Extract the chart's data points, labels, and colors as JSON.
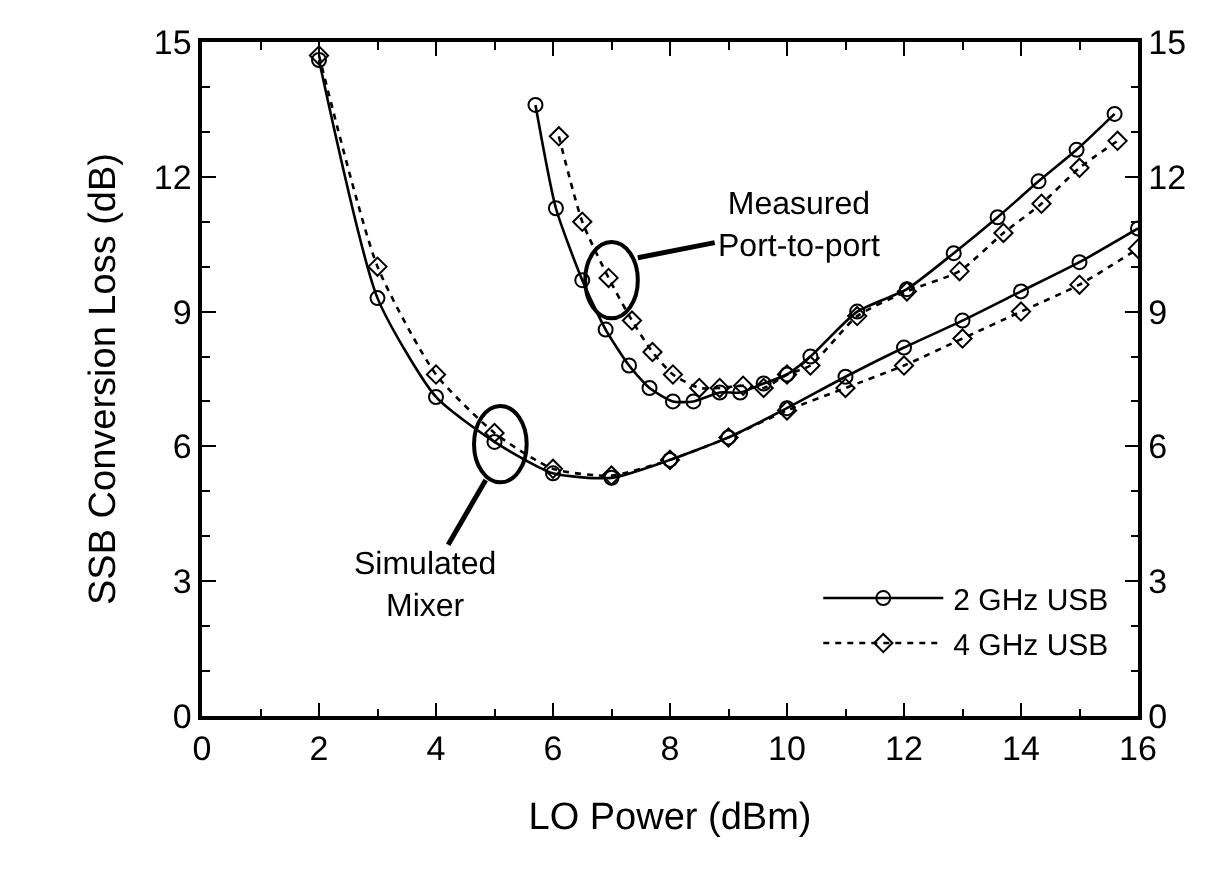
{
  "chart_data": {
    "type": "line",
    "xlabel": "LO Power (dBm)",
    "ylabel": "SSB Conversion Loss (dB)",
    "xlim": [
      0,
      16
    ],
    "xticks": [
      0,
      2,
      4,
      6,
      8,
      10,
      12,
      14,
      16
    ],
    "ylim": [
      0,
      15
    ],
    "yticks": [
      0,
      3,
      6,
      9,
      12,
      15
    ],
    "y2lim": [
      0,
      15
    ],
    "y2ticks": [
      0,
      3,
      6,
      9,
      12,
      15
    ],
    "legend": "bottom right",
    "annotations": [
      "Measured\nPort-to-port",
      "Simulated\nMixer"
    ],
    "series": [
      {
        "name": "2 GHz USB",
        "color": "#000000",
        "marker": "circle",
        "line_style": "solid",
        "x": [
          2,
          3,
          4,
          5,
          6,
          7,
          8,
          9,
          10,
          11,
          12,
          13,
          14,
          15,
          16
        ],
        "values": [
          14.6,
          9.3,
          7.1,
          6.1,
          5.4,
          5.3,
          5.7,
          6.2,
          6.85,
          7.55,
          8.2,
          8.8,
          9.45,
          10.1,
          10.85
        ]
      },
      {
        "name": "4 GHz USB",
        "color": "#000000",
        "marker": "diamond",
        "line_style": "dotted",
        "x": [
          2,
          3,
          4,
          5,
          6,
          7,
          8,
          9,
          10,
          11,
          12,
          13,
          14,
          15,
          16
        ],
        "values": [
          14.7,
          10.0,
          7.6,
          6.3,
          5.5,
          5.35,
          5.7,
          6.2,
          6.8,
          7.3,
          7.8,
          8.4,
          9.0,
          9.6,
          10.4
        ]
      },
      {
        "color": "#000000",
        "marker": "circle",
        "line_style": "solid",
        "x": [
          5.7,
          6.05,
          6.5,
          6.9,
          7.3,
          7.65,
          8.05,
          8.4,
          8.85,
          9.2,
          9.6,
          10.0,
          10.4,
          11.2,
          12.05,
          12.85,
          13.6,
          14.3,
          14.95,
          15.6
        ],
        "values": [
          13.6,
          11.3,
          9.7,
          8.6,
          7.8,
          7.3,
          7.0,
          7.0,
          7.2,
          7.2,
          7.4,
          7.6,
          8.0,
          9.0,
          9.5,
          10.3,
          11.1,
          11.9,
          12.6,
          13.4
        ]
      },
      {
        "color": "#000000",
        "marker": "diamond",
        "line_style": "dotted",
        "x": [
          6.1,
          6.5,
          6.95,
          7.35,
          7.7,
          8.05,
          8.5,
          8.85,
          9.25,
          9.6,
          10.0,
          10.4,
          11.2,
          12.05,
          12.95,
          13.7,
          14.35,
          15.0,
          15.65
        ],
        "values": [
          12.9,
          11.0,
          9.75,
          8.8,
          8.1,
          7.6,
          7.3,
          7.3,
          7.35,
          7.3,
          7.6,
          7.8,
          8.9,
          9.45,
          9.9,
          10.75,
          11.4,
          12.2,
          12.8
        ]
      }
    ]
  }
}
